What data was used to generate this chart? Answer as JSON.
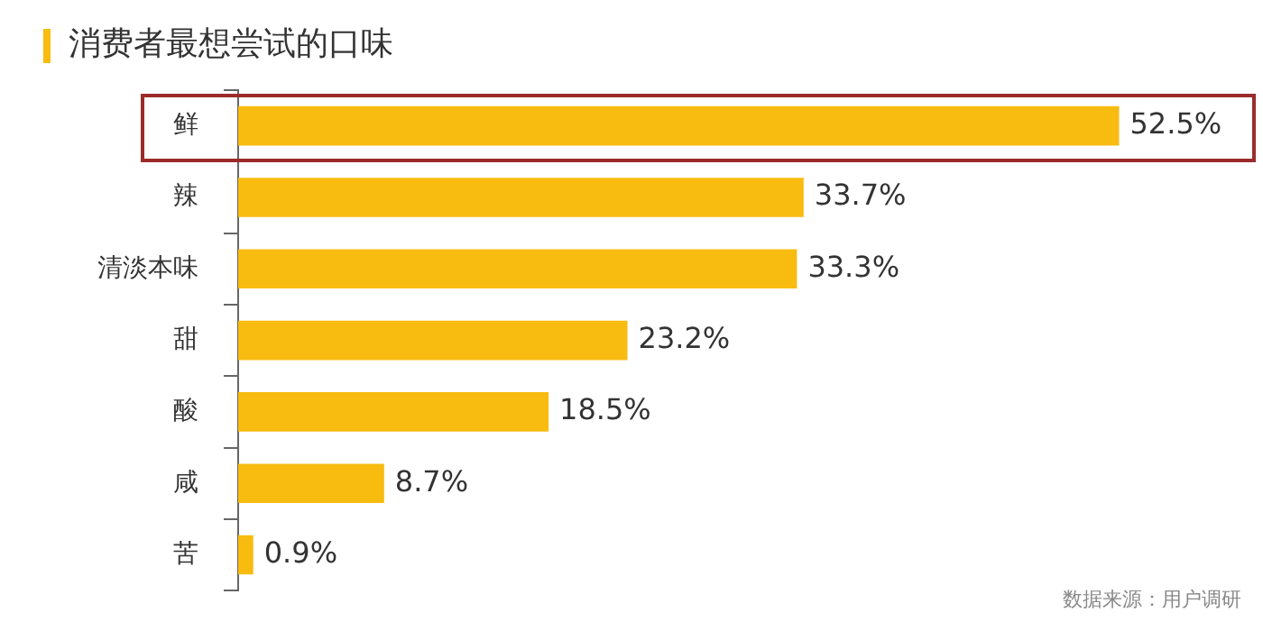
{
  "chart_data": {
    "type": "bar",
    "orientation": "horizontal",
    "title": "消费者最想尝试的口味",
    "categories": [
      "鲜",
      "辣",
      "清淡本味",
      "甜",
      "酸",
      "咸",
      "苦"
    ],
    "values": [
      52.5,
      33.7,
      33.3,
      23.2,
      18.5,
      8.7,
      0.9
    ],
    "value_labels": [
      "52.5%",
      "33.7%",
      "33.3%",
      "23.2%",
      "18.5%",
      "8.7%",
      "0.9%"
    ],
    "color": "#f8bc10",
    "legend": false,
    "tick_labels": "y",
    "annotations": [
      "数据来源：用户调研"
    ]
  }
}
